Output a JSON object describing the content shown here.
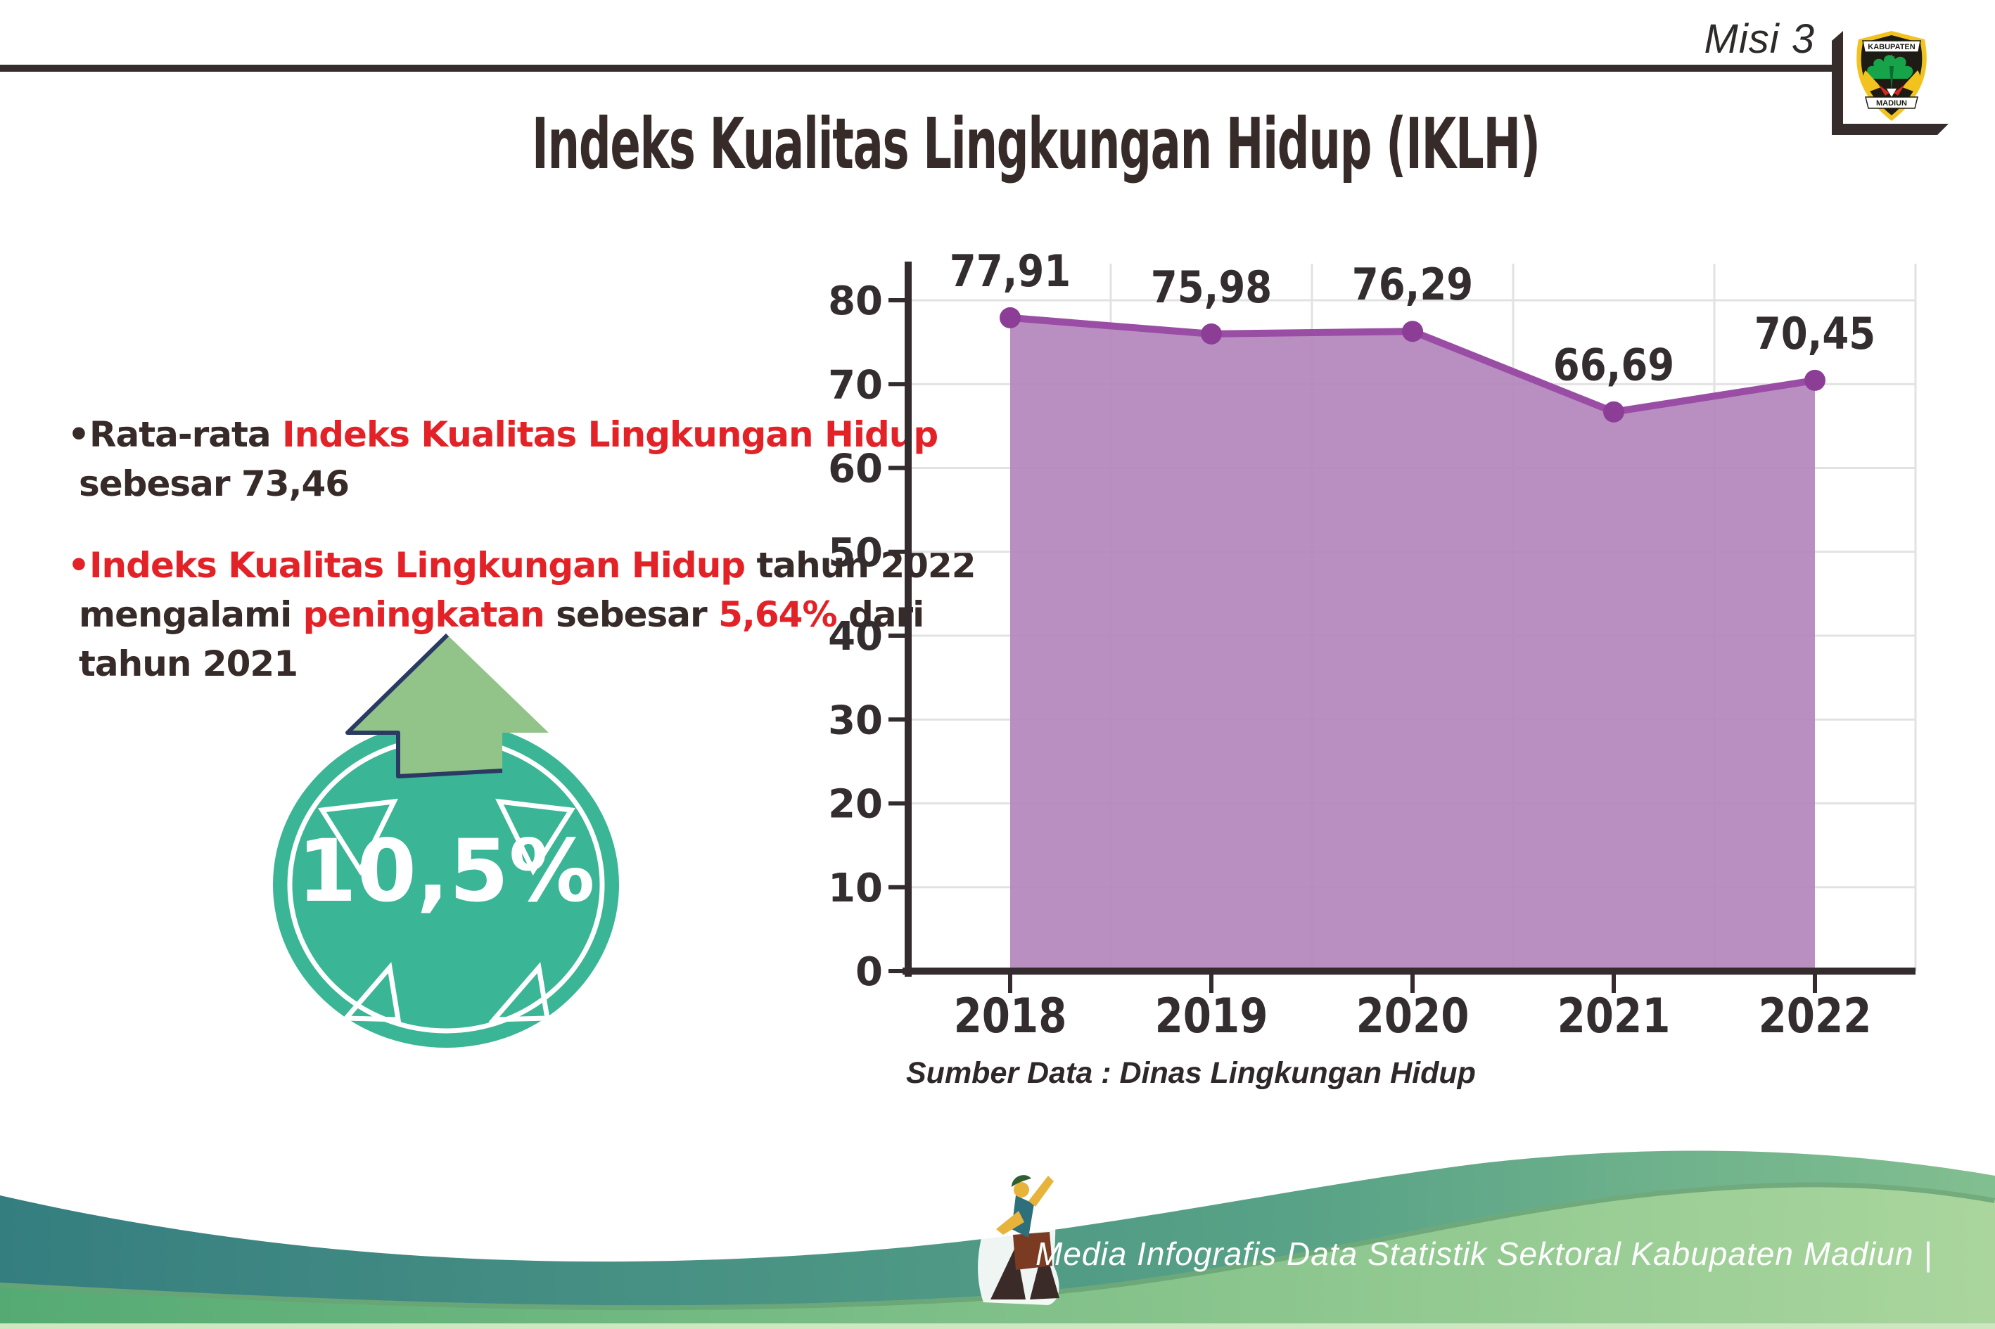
{
  "header": {
    "misi_label": "Misi 3",
    "logo": {
      "top_banner": "KABUPATEN",
      "bottom_banner": "MADIUN"
    }
  },
  "title": "Indeks Kualitas Lingkungan Hidup (IKLH)",
  "bullets": [
    {
      "lines": [
        [
          {
            "t": "•Rata-rata ",
            "c": "dark"
          },
          {
            "t": "Indeks Kualitas Lingkungan Hidup",
            "c": "red"
          }
        ],
        [
          {
            "t": "sebesar 73,46",
            "c": "dark"
          }
        ]
      ]
    },
    {
      "lines": [
        [
          {
            "t": "•Indeks Kualitas Lingkungan Hidup",
            "c": "red"
          },
          {
            "t": " tahun 2022",
            "c": "dark"
          }
        ],
        [
          {
            "t": "mengalami ",
            "c": "dark"
          },
          {
            "t": "peningkatan",
            "c": "red"
          },
          {
            "t": " sebesar ",
            "c": "dark"
          },
          {
            "t": "5,64%",
            "c": "red"
          },
          {
            "t": " dari",
            "c": "dark"
          }
        ],
        [
          {
            "t": "tahun 2021",
            "c": "dark"
          }
        ]
      ]
    }
  ],
  "badge": {
    "value": "10,5%"
  },
  "chart_data": {
    "type": "area",
    "categories": [
      "2018",
      "2019",
      "2020",
      "2021",
      "2022"
    ],
    "values": [
      77.91,
      75.98,
      76.29,
      66.69,
      70.45
    ],
    "value_labels": [
      "77,91",
      "75,98",
      "76,29",
      "66,69",
      "70,45"
    ],
    "title": "",
    "xlabel": "",
    "ylabel": "",
    "ylim": [
      0,
      80
    ],
    "ytick_step": 10,
    "grid": true,
    "legend": "none",
    "source": "Sumber Data : Dinas Lingkungan Hidup"
  },
  "colors": {
    "accent_red": "#e32228",
    "text_dark": "#362b29",
    "area_fill": "#b487bd",
    "trend_line": "#9a4da4",
    "data_point": "#8c3e97",
    "badge_teal": "#3ab596",
    "arrow_green": "#92c489",
    "footer_teal": "#357e80",
    "footer_green": "#55aa74"
  },
  "footer": {
    "credit": "Media Infografis Data Statistik Sektoral Kabupaten Madiun |"
  }
}
